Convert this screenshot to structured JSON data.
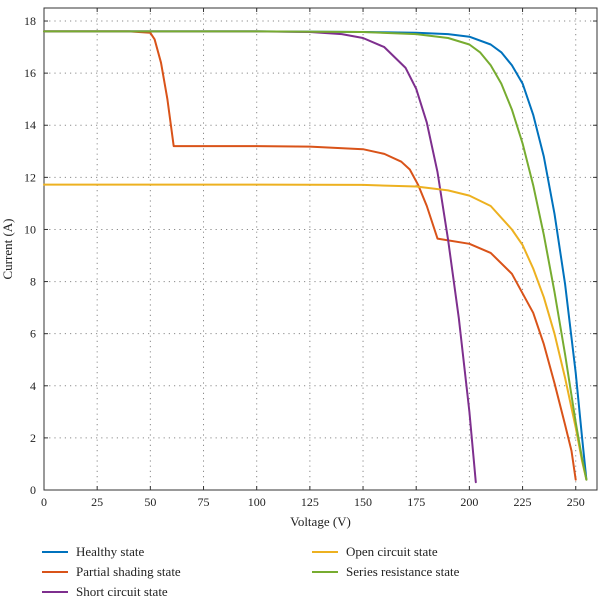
{
  "chart_data": {
    "type": "line",
    "xlabel": "Voltage (V)",
    "ylabel": "Current (A)",
    "xlim": [
      0,
      260
    ],
    "ylim": [
      0,
      18.5
    ],
    "xticks": [
      "0",
      "25",
      "50",
      "75",
      "100",
      "125",
      "150",
      "175",
      "200",
      "225",
      "250"
    ],
    "yticks": [
      "0",
      "2",
      "4",
      "6",
      "8",
      "10",
      "12",
      "14",
      "16",
      "18"
    ],
    "grid": true,
    "legend_position": "bottom",
    "series": [
      {
        "name": "Healthy state",
        "color": "#0072BD",
        "x": [
          0,
          50,
          100,
          150,
          175,
          190,
          200,
          210,
          215,
          220,
          225,
          230,
          235,
          240,
          245,
          250,
          253,
          255
        ],
        "y": [
          17.6,
          17.6,
          17.6,
          17.58,
          17.55,
          17.5,
          17.4,
          17.1,
          16.8,
          16.3,
          15.6,
          14.4,
          12.8,
          10.6,
          7.9,
          4.5,
          2.0,
          0.4
        ]
      },
      {
        "name": "Partial shading state",
        "color": "#D95319",
        "x": [
          0,
          40,
          50,
          52,
          55,
          58,
          61,
          75,
          100,
          125,
          150,
          160,
          168,
          172,
          176,
          180,
          185,
          200,
          210,
          220,
          230,
          235,
          240,
          245,
          248,
          250
        ],
        "y": [
          17.6,
          17.6,
          17.55,
          17.3,
          16.4,
          15.0,
          13.2,
          13.2,
          13.2,
          13.18,
          13.08,
          12.9,
          12.6,
          12.3,
          11.7,
          10.9,
          9.65,
          9.45,
          9.1,
          8.3,
          6.8,
          5.6,
          4.1,
          2.5,
          1.5,
          0.4
        ]
      },
      {
        "name": "Short circuit state",
        "color": "#7E2F8E",
        "x": [
          0,
          50,
          100,
          125,
          140,
          150,
          160,
          170,
          175,
          180,
          185,
          190,
          195,
          200,
          203
        ],
        "y": [
          17.6,
          17.6,
          17.6,
          17.58,
          17.5,
          17.35,
          17.0,
          16.2,
          15.4,
          14.1,
          12.2,
          9.6,
          6.6,
          3.0,
          0.3
        ]
      },
      {
        "name": "Open circuit state",
        "color": "#EDB120",
        "x": [
          0,
          50,
          100,
          150,
          175,
          190,
          200,
          210,
          220,
          225,
          230,
          235,
          240,
          245,
          250,
          253,
          255
        ],
        "y": [
          11.72,
          11.72,
          11.72,
          11.71,
          11.65,
          11.5,
          11.3,
          10.9,
          10.0,
          9.4,
          8.5,
          7.4,
          6.0,
          4.3,
          2.4,
          1.1,
          0.4
        ]
      },
      {
        "name": "Series resistance state",
        "color": "#77AC30",
        "x": [
          0,
          50,
          100,
          150,
          175,
          190,
          200,
          205,
          210,
          215,
          220,
          225,
          230,
          235,
          240,
          245,
          250,
          253,
          255
        ],
        "y": [
          17.6,
          17.6,
          17.6,
          17.58,
          17.5,
          17.35,
          17.1,
          16.8,
          16.3,
          15.6,
          14.6,
          13.3,
          11.7,
          9.8,
          7.6,
          5.2,
          2.6,
          1.2,
          0.4
        ]
      }
    ]
  },
  "legend": {
    "items": [
      {
        "label": "Healthy state",
        "color": "#0072BD"
      },
      {
        "label": "Partial shading state",
        "color": "#D95319"
      },
      {
        "label": "Short circuit state",
        "color": "#7E2F8E"
      },
      {
        "label": "Open circuit state",
        "color": "#EDB120"
      },
      {
        "label": "Series resistance state",
        "color": "#77AC30"
      }
    ]
  }
}
